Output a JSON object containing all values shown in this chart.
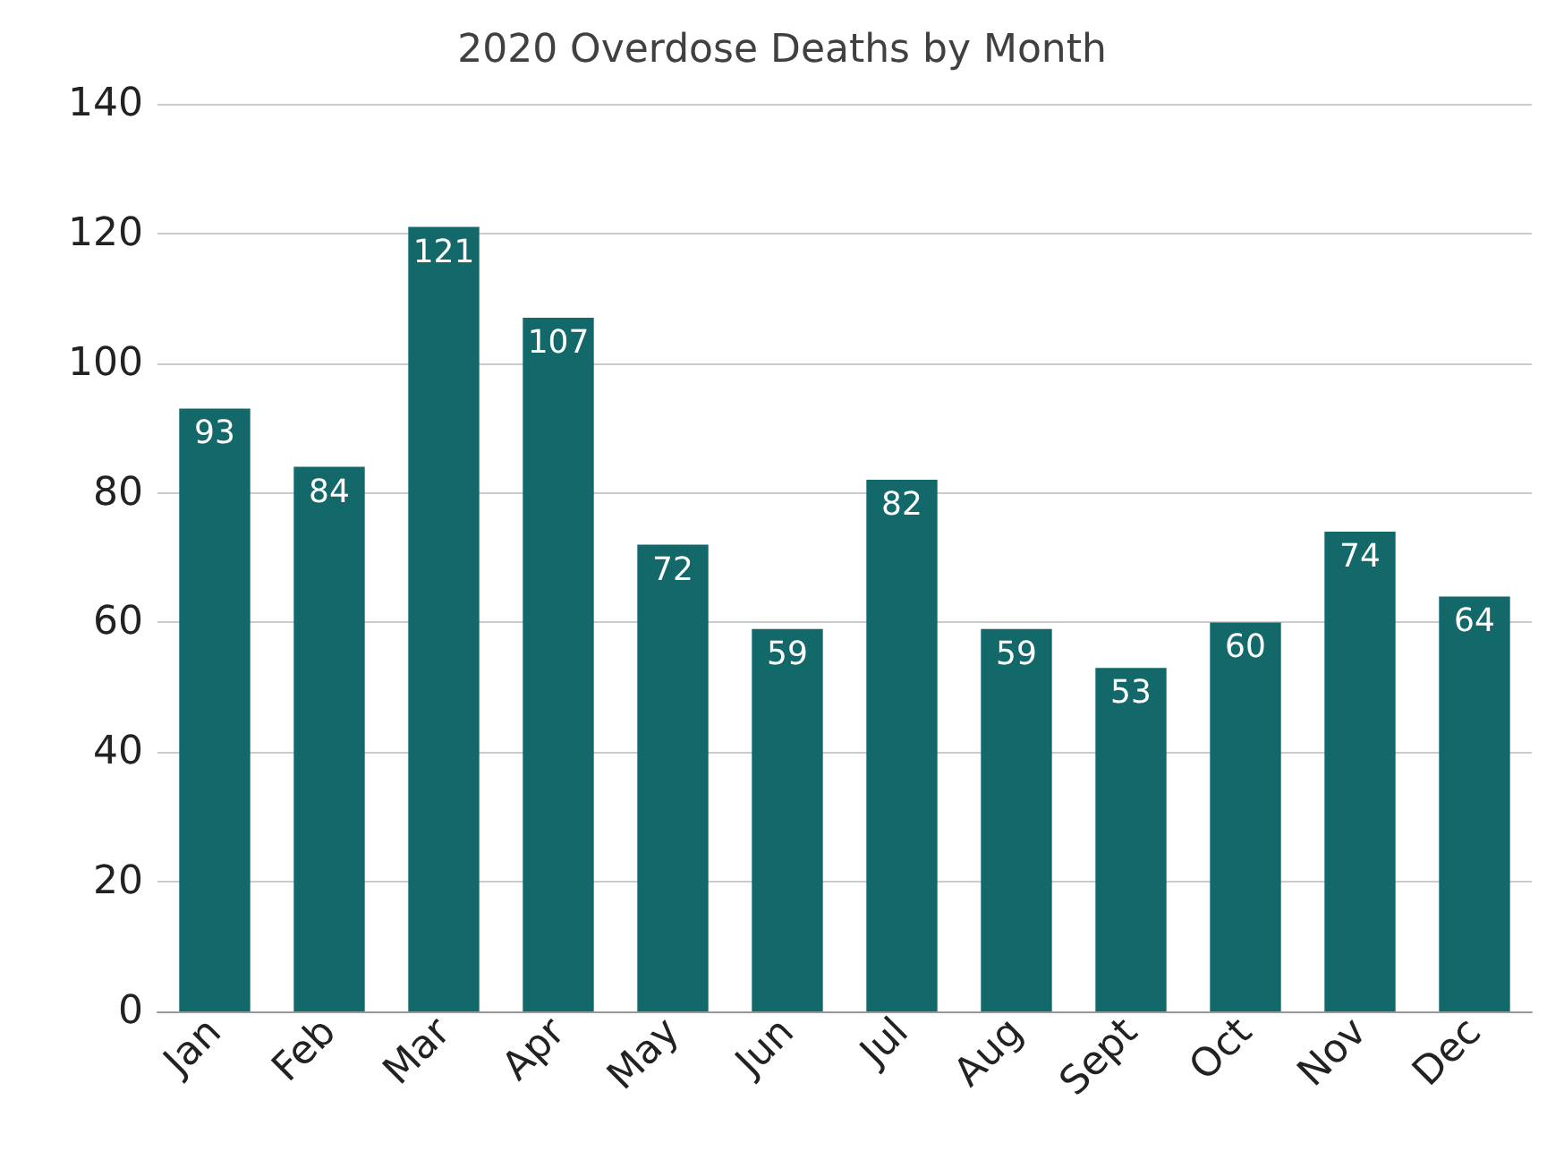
{
  "chart_data": {
    "type": "bar",
    "title": "2020 Overdose Deaths by Month",
    "categories": [
      "Jan",
      "Feb",
      "Mar",
      "Apr",
      "May",
      "Jun",
      "Jul",
      "Aug",
      "Sept",
      "Oct",
      "Nov",
      "Dec"
    ],
    "values": [
      93,
      84,
      121,
      107,
      72,
      59,
      82,
      59,
      53,
      60,
      74,
      64
    ],
    "color": "#13686a",
    "ylim": [
      0,
      140
    ],
    "yticks": [
      0,
      20,
      40,
      60,
      80,
      100,
      120,
      140
    ],
    "grid": "y",
    "data_labels": true
  }
}
